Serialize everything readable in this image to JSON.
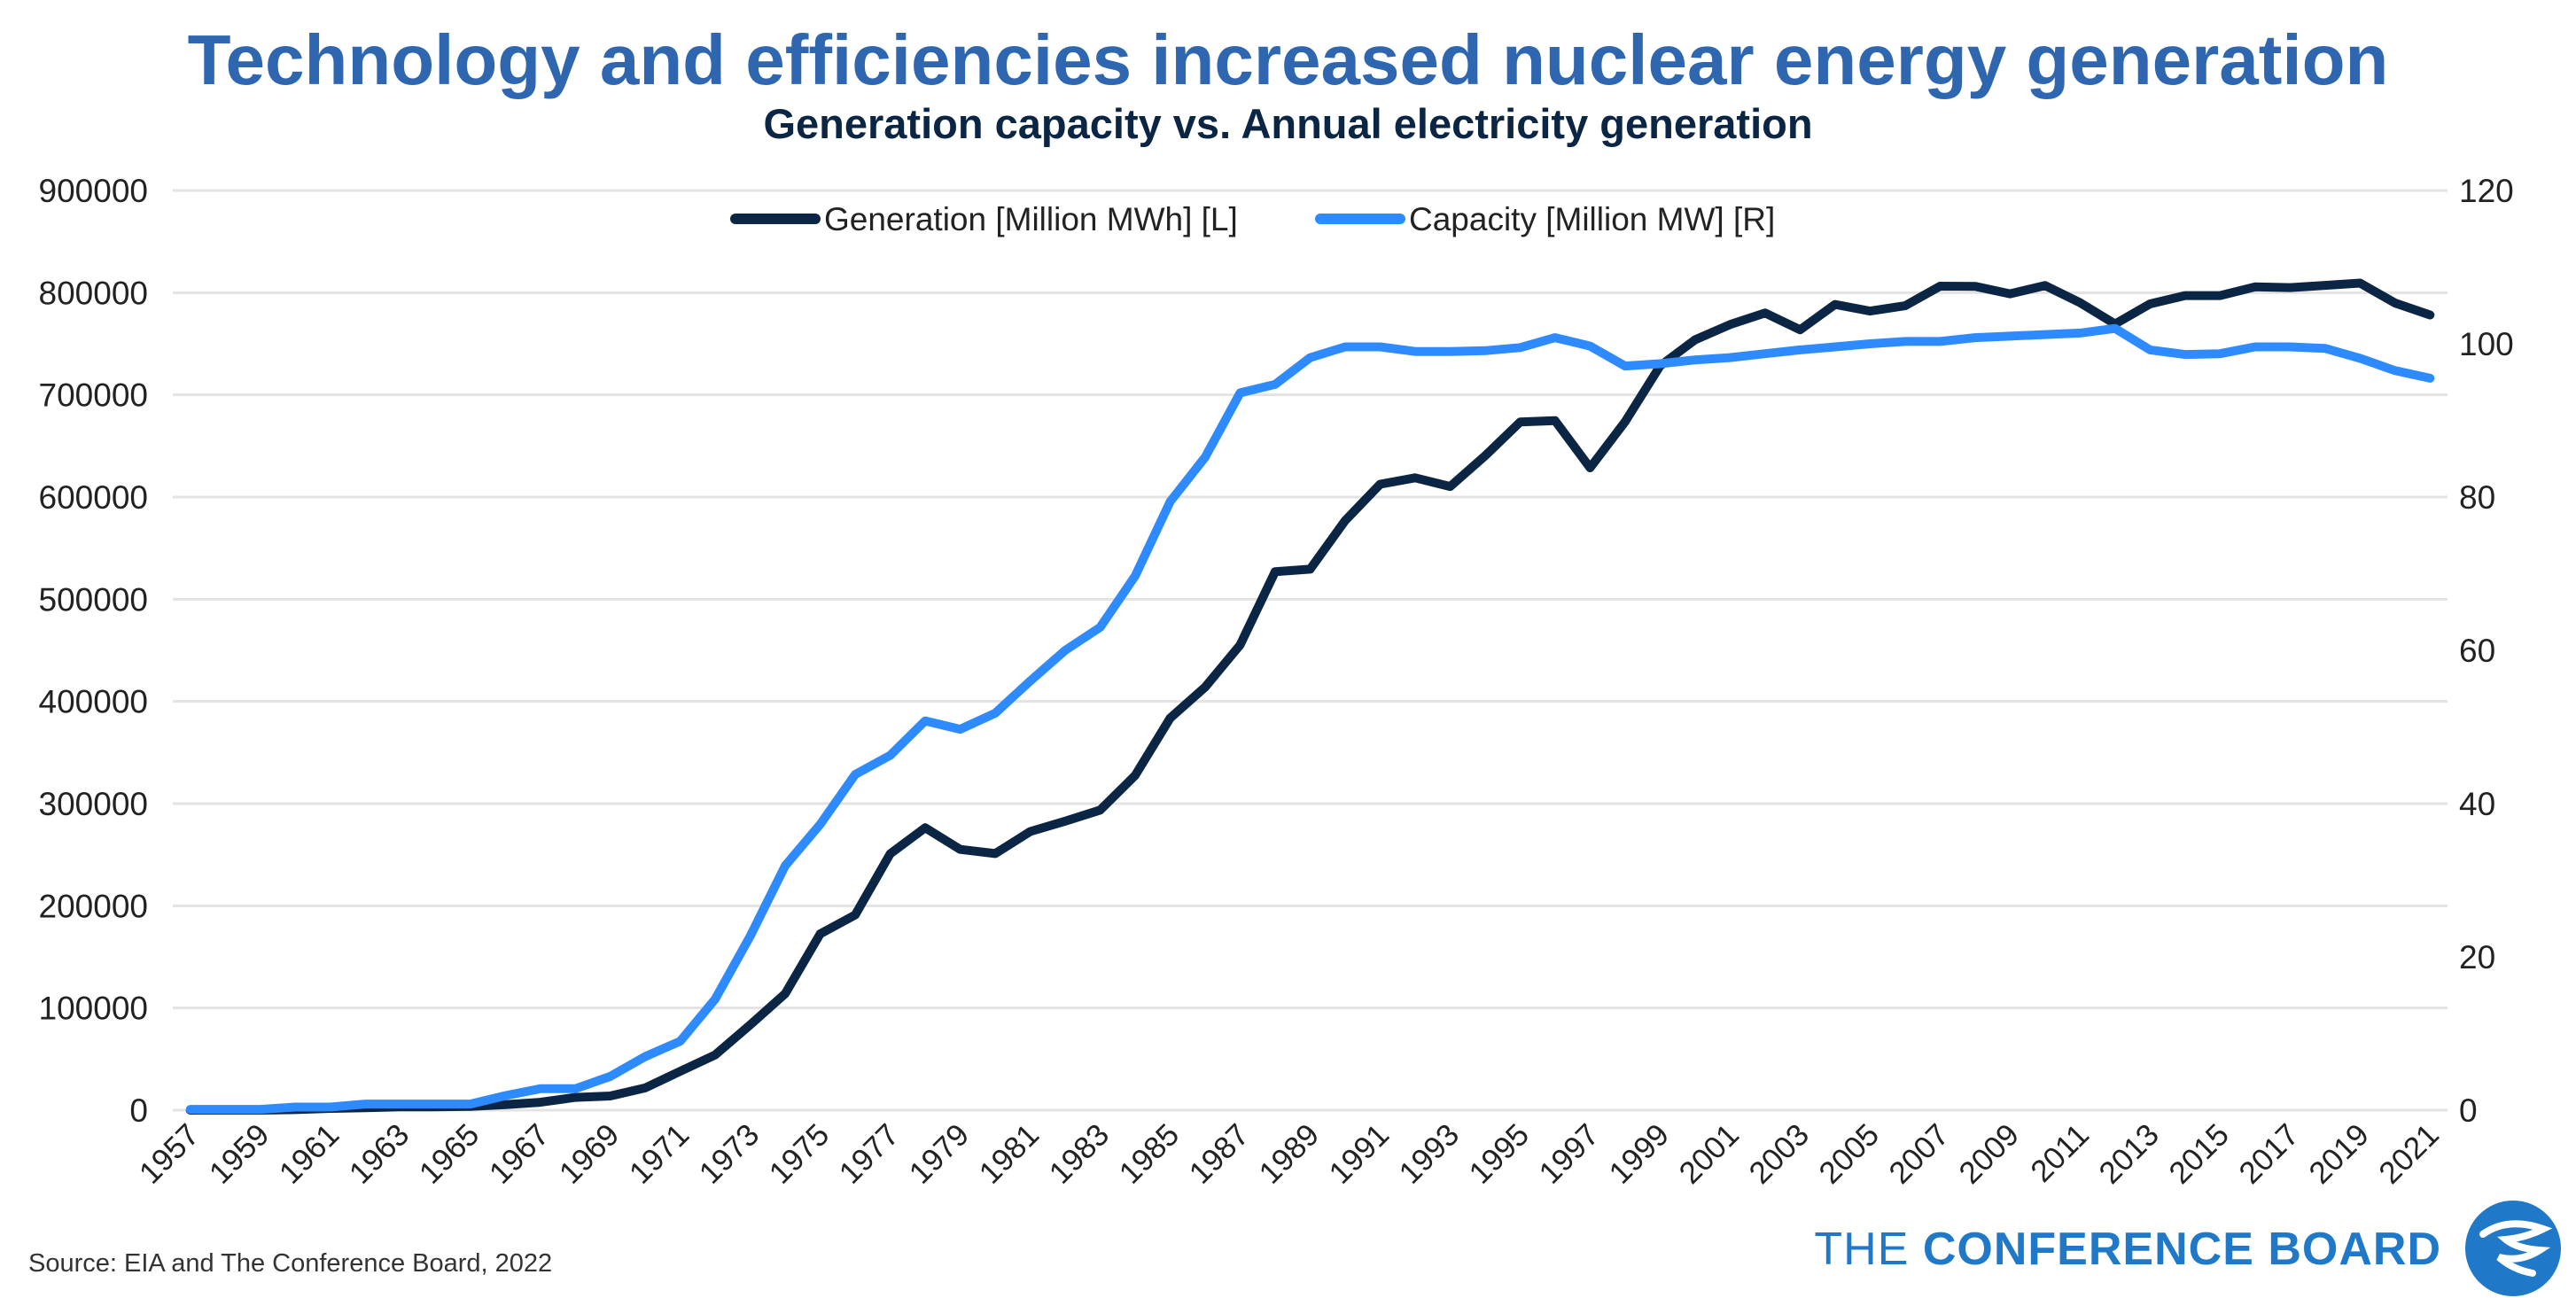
{
  "header": {
    "title": "Technology and efficiencies increased nuclear energy generation",
    "subtitle": "Generation capacity vs. Annual electricity generation"
  },
  "footer": {
    "source": "Source: EIA and The Conference Board, 2022",
    "brand_prefix": "THE ",
    "brand_main": "CONFERENCE BOARD"
  },
  "colors": {
    "generation": "#0b2545",
    "capacity": "#2e8bff",
    "grid": "#e3e3e3",
    "title": "#2e66b0",
    "brand": "#1f78c8"
  },
  "chart_data": {
    "type": "line",
    "title": "Technology and efficiencies increased nuclear energy generation",
    "subtitle": "Generation capacity vs. Annual electricity generation",
    "x": [
      1957,
      1958,
      1959,
      1960,
      1961,
      1962,
      1963,
      1964,
      1965,
      1966,
      1967,
      1968,
      1969,
      1970,
      1971,
      1972,
      1973,
      1974,
      1975,
      1976,
      1977,
      1978,
      1979,
      1980,
      1981,
      1982,
      1983,
      1984,
      1985,
      1986,
      1987,
      1988,
      1989,
      1990,
      1991,
      1992,
      1993,
      1994,
      1995,
      1996,
      1997,
      1998,
      1999,
      2000,
      2001,
      2002,
      2003,
      2004,
      2005,
      2006,
      2007,
      2008,
      2009,
      2010,
      2011,
      2012,
      2013,
      2014,
      2015,
      2016,
      2017,
      2018,
      2019,
      2020,
      2021
    ],
    "x_tick_labels": [
      "1957",
      "1959",
      "1961",
      "1963",
      "1965",
      "1967",
      "1969",
      "1971",
      "1973",
      "1975",
      "1977",
      "1979",
      "1981",
      "1983",
      "1985",
      "1987",
      "1989",
      "1991",
      "1993",
      "1995",
      "1997",
      "1999",
      "2001",
      "2003",
      "2005",
      "2007",
      "2009",
      "2011",
      "2013",
      "2015",
      "2017",
      "2019",
      "2021"
    ],
    "y_left": {
      "ylim": [
        0,
        900000
      ],
      "ticks": [
        "0",
        "100000",
        "200000",
        "300000",
        "400000",
        "500000",
        "600000",
        "700000",
        "800000",
        "900000"
      ]
    },
    "y_right": {
      "ylim": [
        0,
        120
      ],
      "ticks": [
        "0",
        "20",
        "40",
        "60",
        "80",
        "100",
        "120"
      ]
    },
    "grid": true,
    "legend_position": "top-center",
    "series": [
      {
        "name": "Generation [Million MWh] [L]",
        "axis": "left",
        "values": [
          0,
          0,
          0,
          500,
          1700,
          2300,
          3200,
          3300,
          3700,
          5500,
          7700,
          12500,
          13900,
          21800,
          38100,
          54100,
          83500,
          114000,
          172500,
          191100,
          250900,
          276400,
          255200,
          251100,
          272700,
          282800,
          293700,
          327600,
          383700,
          414000,
          455300,
          527000,
          529400,
          576900,
          612600,
          618800,
          610300,
          640400,
          673400,
          674700,
          628600,
          673700,
          728300,
          753900,
          768800,
          780100,
          763700,
          788500,
          782000,
          787200,
          806400,
          806200,
          798900,
          807000,
          790200,
          769300,
          789000,
          797200,
          797200,
          805700,
          805000,
          807100,
          809400,
          789900,
          778200
        ]
      },
      {
        "name": "Capacity [Million MW] [R]",
        "axis": "right",
        "values": [
          0.1,
          0.1,
          0.1,
          0.4,
          0.4,
          0.8,
          0.8,
          0.8,
          0.8,
          1.9,
          2.8,
          2.8,
          4.4,
          7.0,
          9.0,
          14.5,
          22.7,
          31.9,
          37.3,
          43.8,
          46.3,
          50.8,
          49.7,
          51.8,
          56.0,
          60.0,
          63.0,
          69.7,
          79.4,
          85.2,
          93.6,
          94.7,
          98.2,
          99.6,
          99.6,
          99.0,
          99.0,
          99.1,
          99.5,
          100.8,
          99.7,
          97.1,
          97.4,
          97.9,
          98.2,
          98.7,
          99.2,
          99.6,
          100.0,
          100.3,
          100.3,
          100.8,
          101.0,
          101.2,
          101.4,
          102.0,
          99.2,
          98.6,
          98.7,
          99.6,
          99.6,
          99.4,
          98.1,
          96.5,
          95.5
        ]
      }
    ]
  }
}
